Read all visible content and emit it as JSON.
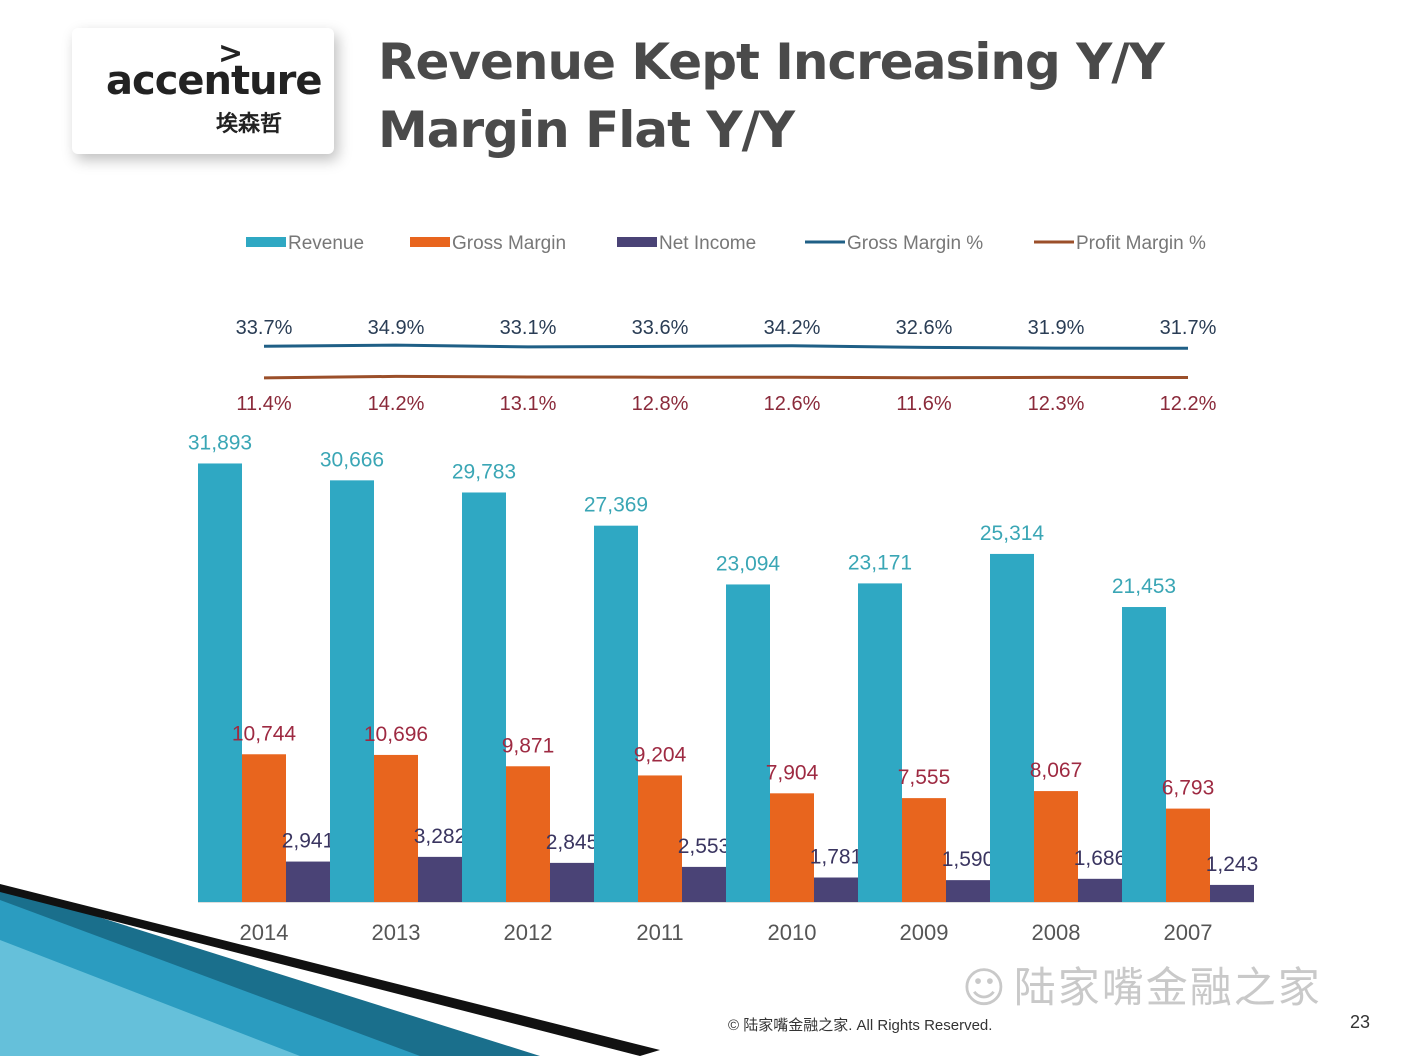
{
  "logo": {
    "mark": ">",
    "word": "accenture",
    "chinese": "埃森哲"
  },
  "title": {
    "line1": "Revenue Kept Increasing Y/Y",
    "line2": "Margin Flat Y/Y"
  },
  "colors": {
    "revenue": "#2fa8c3",
    "gross_margin": "#e8651e",
    "net_income": "#4a4376",
    "gross_margin_pct": "#1f5f86",
    "profit_margin_pct": "#9b4f2a",
    "revenue_label": "#3aa6b5",
    "gm_label": "#9e2a42",
    "ni_label": "#3a3560",
    "title": "#4a4a4a"
  },
  "chart_data": {
    "type": "bar",
    "categories": [
      "2014",
      "2013",
      "2012",
      "2011",
      "2010",
      "2009",
      "2008",
      "2007"
    ],
    "series": [
      {
        "name": "Revenue",
        "kind": "bar",
        "values": [
          31893,
          30666,
          29783,
          27369,
          23094,
          23171,
          25314,
          21453
        ],
        "labels": [
          "31,893",
          "30,666",
          "29,783",
          "27,369",
          "23,094",
          "23,171",
          "25,314",
          "21,453"
        ]
      },
      {
        "name": "Gross Margin",
        "kind": "bar",
        "values": [
          10744,
          10696,
          9871,
          9204,
          7904,
          7555,
          8067,
          6793
        ],
        "labels": [
          "10,744",
          "10,696",
          "9,871",
          "9,204",
          "7,904",
          "7,555",
          "8,067",
          "6,793"
        ]
      },
      {
        "name": "Net Income",
        "kind": "bar",
        "values": [
          2941,
          3282,
          2845,
          2553,
          1781,
          1590,
          1686,
          1243
        ],
        "labels": [
          "2,941",
          "3,282",
          "2,845",
          "2,553",
          "1,781",
          "1,590",
          "1,686",
          "1,243"
        ]
      },
      {
        "name": "Gross Margin %",
        "kind": "line",
        "values": [
          33.7,
          34.9,
          33.1,
          33.6,
          34.2,
          32.6,
          31.9,
          31.7
        ],
        "labels": [
          "33.7%",
          "34.9%",
          "33.1%",
          "33.6%",
          "34.2%",
          "32.6%",
          "31.9%",
          "31.7%"
        ]
      },
      {
        "name": "Profit Margin %",
        "kind": "line",
        "values": [
          11.4,
          14.2,
          13.1,
          12.8,
          12.6,
          11.6,
          12.3,
          12.2
        ],
        "labels": [
          "11.4%",
          "14.2%",
          "13.1%",
          "12.8%",
          "12.6%",
          "11.6%",
          "12.3%",
          "12.2%"
        ]
      }
    ],
    "ylim": [
      0,
      32000
    ],
    "grid": false,
    "legend": "top"
  },
  "footer": {
    "copyright": "© 陆家嘴金融之家. All Rights Reserved.",
    "page": "23"
  },
  "watermark": {
    "text": "陆家嘴金融之家"
  }
}
